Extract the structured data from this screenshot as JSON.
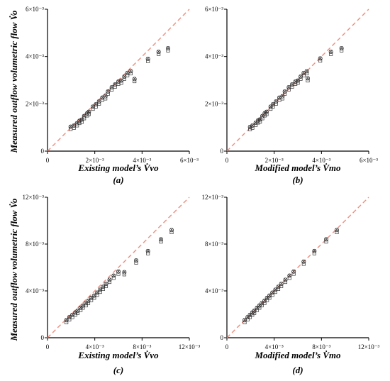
{
  "y_label": "Measured outflow volumetric flow V̇o",
  "chart_data": [
    {
      "type": "scatter",
      "panel": "(a)",
      "xlabel": "Existing model’s V̇vo",
      "ylabel": "Measured outflow volumetric flow V̇o",
      "xlim": [
        0,
        0.006
      ],
      "ylim": [
        0,
        0.006
      ],
      "x_ticks": [
        "0",
        "2×10⁻³",
        "4×10⁻³",
        "6×10⁻³"
      ],
      "y_ticks": [
        "0",
        "2×10⁻³",
        "4×10⁻³",
        "6×10⁻³"
      ],
      "reference_line": "y = x",
      "grid": false,
      "points": [
        [
          0.00098,
          0.00103
        ],
        [
          0.00112,
          0.00108
        ],
        [
          0.00125,
          0.00118
        ],
        [
          0.00135,
          0.00128
        ],
        [
          0.00145,
          0.00133
        ],
        [
          0.00155,
          0.00148
        ],
        [
          0.00168,
          0.0016
        ],
        [
          0.00175,
          0.00166
        ],
        [
          0.00192,
          0.00188
        ],
        [
          0.00205,
          0.00198
        ],
        [
          0.00218,
          0.0021
        ],
        [
          0.00232,
          0.00226
        ],
        [
          0.00245,
          0.00232
        ],
        [
          0.00256,
          0.00252
        ],
        [
          0.00272,
          0.0027
        ],
        [
          0.00286,
          0.00282
        ],
        [
          0.003,
          0.00294
        ],
        [
          0.00312,
          0.00298
        ],
        [
          0.00325,
          0.00315
        ],
        [
          0.00338,
          0.0033
        ],
        [
          0.00352,
          0.00338
        ],
        [
          0.00368,
          0.00305
        ],
        [
          0.00425,
          0.0039
        ],
        [
          0.0047,
          0.0042
        ],
        [
          0.0051,
          0.00435
        ]
      ]
    },
    {
      "type": "scatter",
      "panel": "(b)",
      "xlabel": "Modified model’s V̇mo",
      "ylabel": "",
      "xlim": [
        0,
        0.006
      ],
      "ylim": [
        0,
        0.006
      ],
      "x_ticks": [
        "0",
        "2×10⁻³",
        "4×10⁻³",
        "6×10⁻³"
      ],
      "y_ticks": [
        "0",
        "2×10⁻³",
        "4×10⁻³",
        "6×10⁻³"
      ],
      "reference_line": "y = x",
      "grid": false,
      "points": [
        [
          0.00098,
          0.00102
        ],
        [
          0.00108,
          0.00108
        ],
        [
          0.00122,
          0.0012
        ],
        [
          0.00132,
          0.0013
        ],
        [
          0.0014,
          0.00134
        ],
        [
          0.0015,
          0.00148
        ],
        [
          0.0016,
          0.0016
        ],
        [
          0.00168,
          0.00166
        ],
        [
          0.00185,
          0.00188
        ],
        [
          0.00195,
          0.00198
        ],
        [
          0.00208,
          0.0021
        ],
        [
          0.00222,
          0.00226
        ],
        [
          0.00235,
          0.00232
        ],
        [
          0.00245,
          0.00252
        ],
        [
          0.00262,
          0.0027
        ],
        [
          0.00276,
          0.00282
        ],
        [
          0.0029,
          0.00294
        ],
        [
          0.003,
          0.00298
        ],
        [
          0.00312,
          0.00315
        ],
        [
          0.00325,
          0.0033
        ],
        [
          0.00338,
          0.00338
        ],
        [
          0.00342,
          0.00308
        ],
        [
          0.00395,
          0.00392
        ],
        [
          0.0044,
          0.0042
        ],
        [
          0.00485,
          0.00435
        ]
      ]
    },
    {
      "type": "scatter",
      "panel": "(c)",
      "xlabel": "Existing model’s V̇vo",
      "ylabel": "Measured outflow volumetric flow V̇o",
      "xlim": [
        0,
        0.012
      ],
      "ylim": [
        0,
        0.012
      ],
      "x_ticks": [
        "0",
        "4×10⁻³",
        "8×10⁻³",
        "12×10⁻³"
      ],
      "y_ticks": [
        "0",
        "4×10⁻³",
        "8×10⁻³",
        "12×10⁻³"
      ],
      "reference_line": "y = x",
      "grid": false,
      "points": [
        [
          0.0016,
          0.0015
        ],
        [
          0.00185,
          0.00175
        ],
        [
          0.0021,
          0.00195
        ],
        [
          0.00235,
          0.00215
        ],
        [
          0.00255,
          0.0023
        ],
        [
          0.0028,
          0.00255
        ],
        [
          0.003,
          0.00275
        ],
        [
          0.00325,
          0.00295
        ],
        [
          0.00345,
          0.00315
        ],
        [
          0.0037,
          0.0034
        ],
        [
          0.00395,
          0.0036
        ],
        [
          0.0042,
          0.00385
        ],
        [
          0.00445,
          0.0041
        ],
        [
          0.0047,
          0.00435
        ],
        [
          0.00495,
          0.0046
        ],
        [
          0.00525,
          0.00495
        ],
        [
          0.0056,
          0.0053
        ],
        [
          0.006,
          0.00565
        ],
        [
          0.0065,
          0.0056
        ],
        [
          0.0075,
          0.0066
        ],
        [
          0.0085,
          0.0074
        ],
        [
          0.0096,
          0.0084
        ],
        [
          0.0105,
          0.0092
        ]
      ]
    },
    {
      "type": "scatter",
      "panel": "(d)",
      "xlabel": "Modified model’s V̇mo",
      "ylabel": "",
      "xlim": [
        0,
        0.012
      ],
      "ylim": [
        0,
        0.012
      ],
      "x_ticks": [
        "0",
        "4×10⁻³",
        "8×10⁻³",
        "12×10⁻³"
      ],
      "y_ticks": [
        "0",
        "4×10⁻³",
        "8×10⁻³",
        "12×10⁻³"
      ],
      "reference_line": "y = x",
      "grid": false,
      "points": [
        [
          0.0015,
          0.0015
        ],
        [
          0.00175,
          0.00175
        ],
        [
          0.00195,
          0.00195
        ],
        [
          0.00215,
          0.00215
        ],
        [
          0.00232,
          0.0023
        ],
        [
          0.00255,
          0.00255
        ],
        [
          0.00275,
          0.00275
        ],
        [
          0.00295,
          0.00295
        ],
        [
          0.00318,
          0.00315
        ],
        [
          0.0034,
          0.0034
        ],
        [
          0.0036,
          0.0036
        ],
        [
          0.00385,
          0.00385
        ],
        [
          0.0041,
          0.0041
        ],
        [
          0.00435,
          0.00435
        ],
        [
          0.0046,
          0.0046
        ],
        [
          0.00495,
          0.00495
        ],
        [
          0.0053,
          0.0053
        ],
        [
          0.00565,
          0.00565
        ],
        [
          0.0065,
          0.0065
        ],
        [
          0.0074,
          0.0074
        ],
        [
          0.0084,
          0.0084
        ],
        [
          0.0093,
          0.0092
        ]
      ]
    }
  ],
  "colors": {
    "reference_line": "#f08c7c",
    "marker": "#333333",
    "axis": "#000000"
  }
}
